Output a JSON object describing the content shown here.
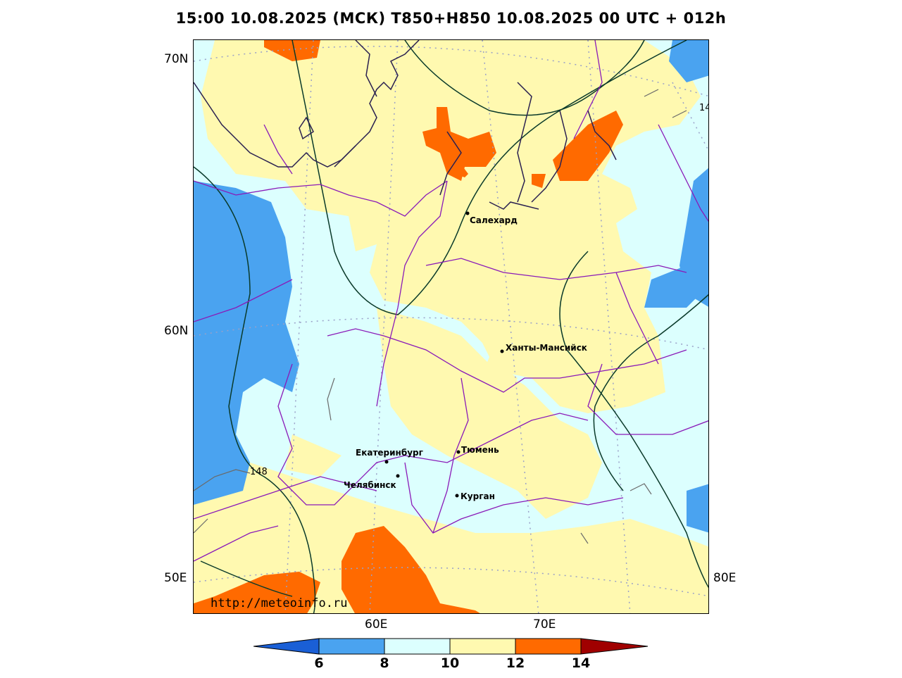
{
  "title": "15:00 10.08.2025 (МСК) T850+H850 10.08.2025 00 UTC + 012h",
  "lat_labels": [
    "70N",
    "60N",
    "50E"
  ],
  "lon_labels": [
    "60E",
    "70E",
    "80E"
  ],
  "cities": [
    {
      "name": "Салехард"
    },
    {
      "name": "Ханты-Мансийск"
    },
    {
      "name": "Екатеринбург"
    },
    {
      "name": "Тюмень"
    },
    {
      "name": "Челябинск"
    },
    {
      "name": "Курган"
    }
  ],
  "contour_labels": [
    "148",
    "14"
  ],
  "watermark": "http://meteoinfo.ru",
  "legend": {
    "ticks": [
      "6",
      "8",
      "10",
      "12",
      "14"
    ],
    "colors": {
      "below_6": "#1a5fd6",
      "6_8": "#4aa3f0",
      "8_10": "#dcfffe",
      "10_12": "#fff9b0",
      "12_14": "#ff6a00",
      "above_14": "#a00000"
    }
  }
}
